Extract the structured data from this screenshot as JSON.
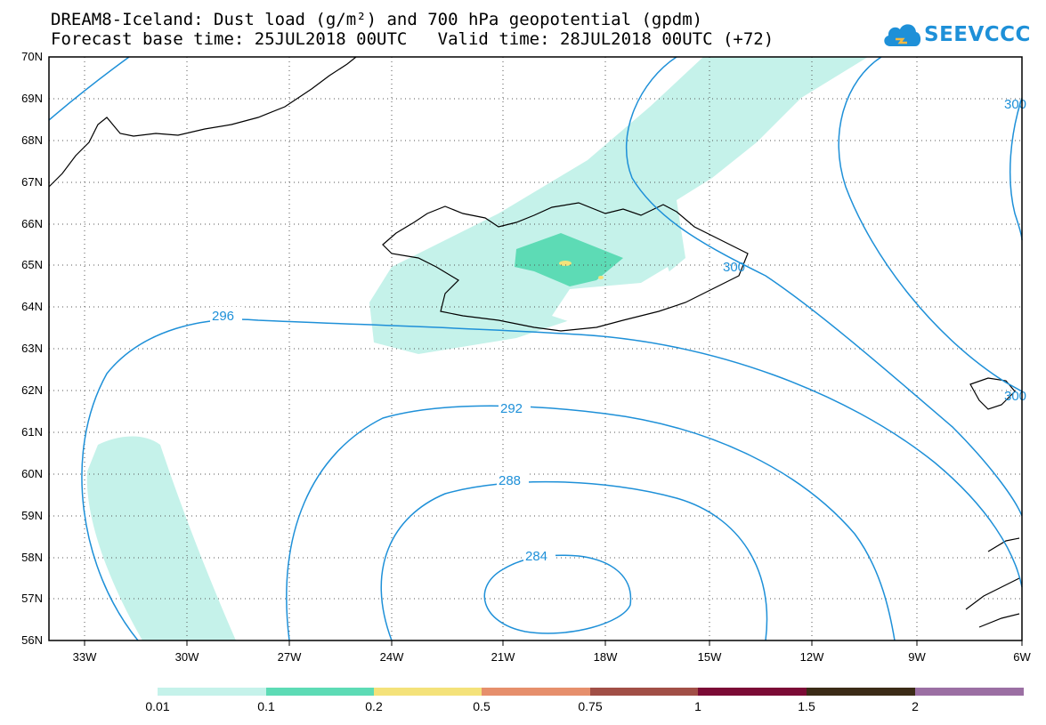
{
  "header": {
    "line1": "DREAM8-Iceland: Dust load (g/m²) and 700 hPa geopotential (gpdm)",
    "line2": "Forecast base time: 25JUL2018 00UTC   Valid time: 28JUL2018 00UTC (+72)"
  },
  "logo": {
    "text": "SEEVCCC",
    "color": "#1e90d8"
  },
  "axes": {
    "lat_labels": [
      "70N",
      "69N",
      "68N",
      "67N",
      "66N",
      "65N",
      "64N",
      "63N",
      "62N",
      "61N",
      "60N",
      "59N",
      "58N",
      "57N",
      "56N"
    ],
    "lon_labels": [
      "33W",
      "30W",
      "27W",
      "24W",
      "21W",
      "18W",
      "15W",
      "12W",
      "9W",
      "6W"
    ]
  },
  "contours": {
    "color": "#1e90d8",
    "labels": [
      "296",
      "292",
      "288",
      "284",
      "300",
      "300",
      "300"
    ]
  },
  "colorbar": {
    "labels": [
      "0.01",
      "0.1",
      "0.2",
      "0.5",
      "0.75",
      "1",
      "1.5",
      "2"
    ],
    "colors": [
      "#c5f2ea",
      "#5ddbb5",
      "#f4e27a",
      "#e68f6c",
      "#a14f46",
      "#7b0b35",
      "#3b2b16",
      "#9b6fa3"
    ]
  }
}
